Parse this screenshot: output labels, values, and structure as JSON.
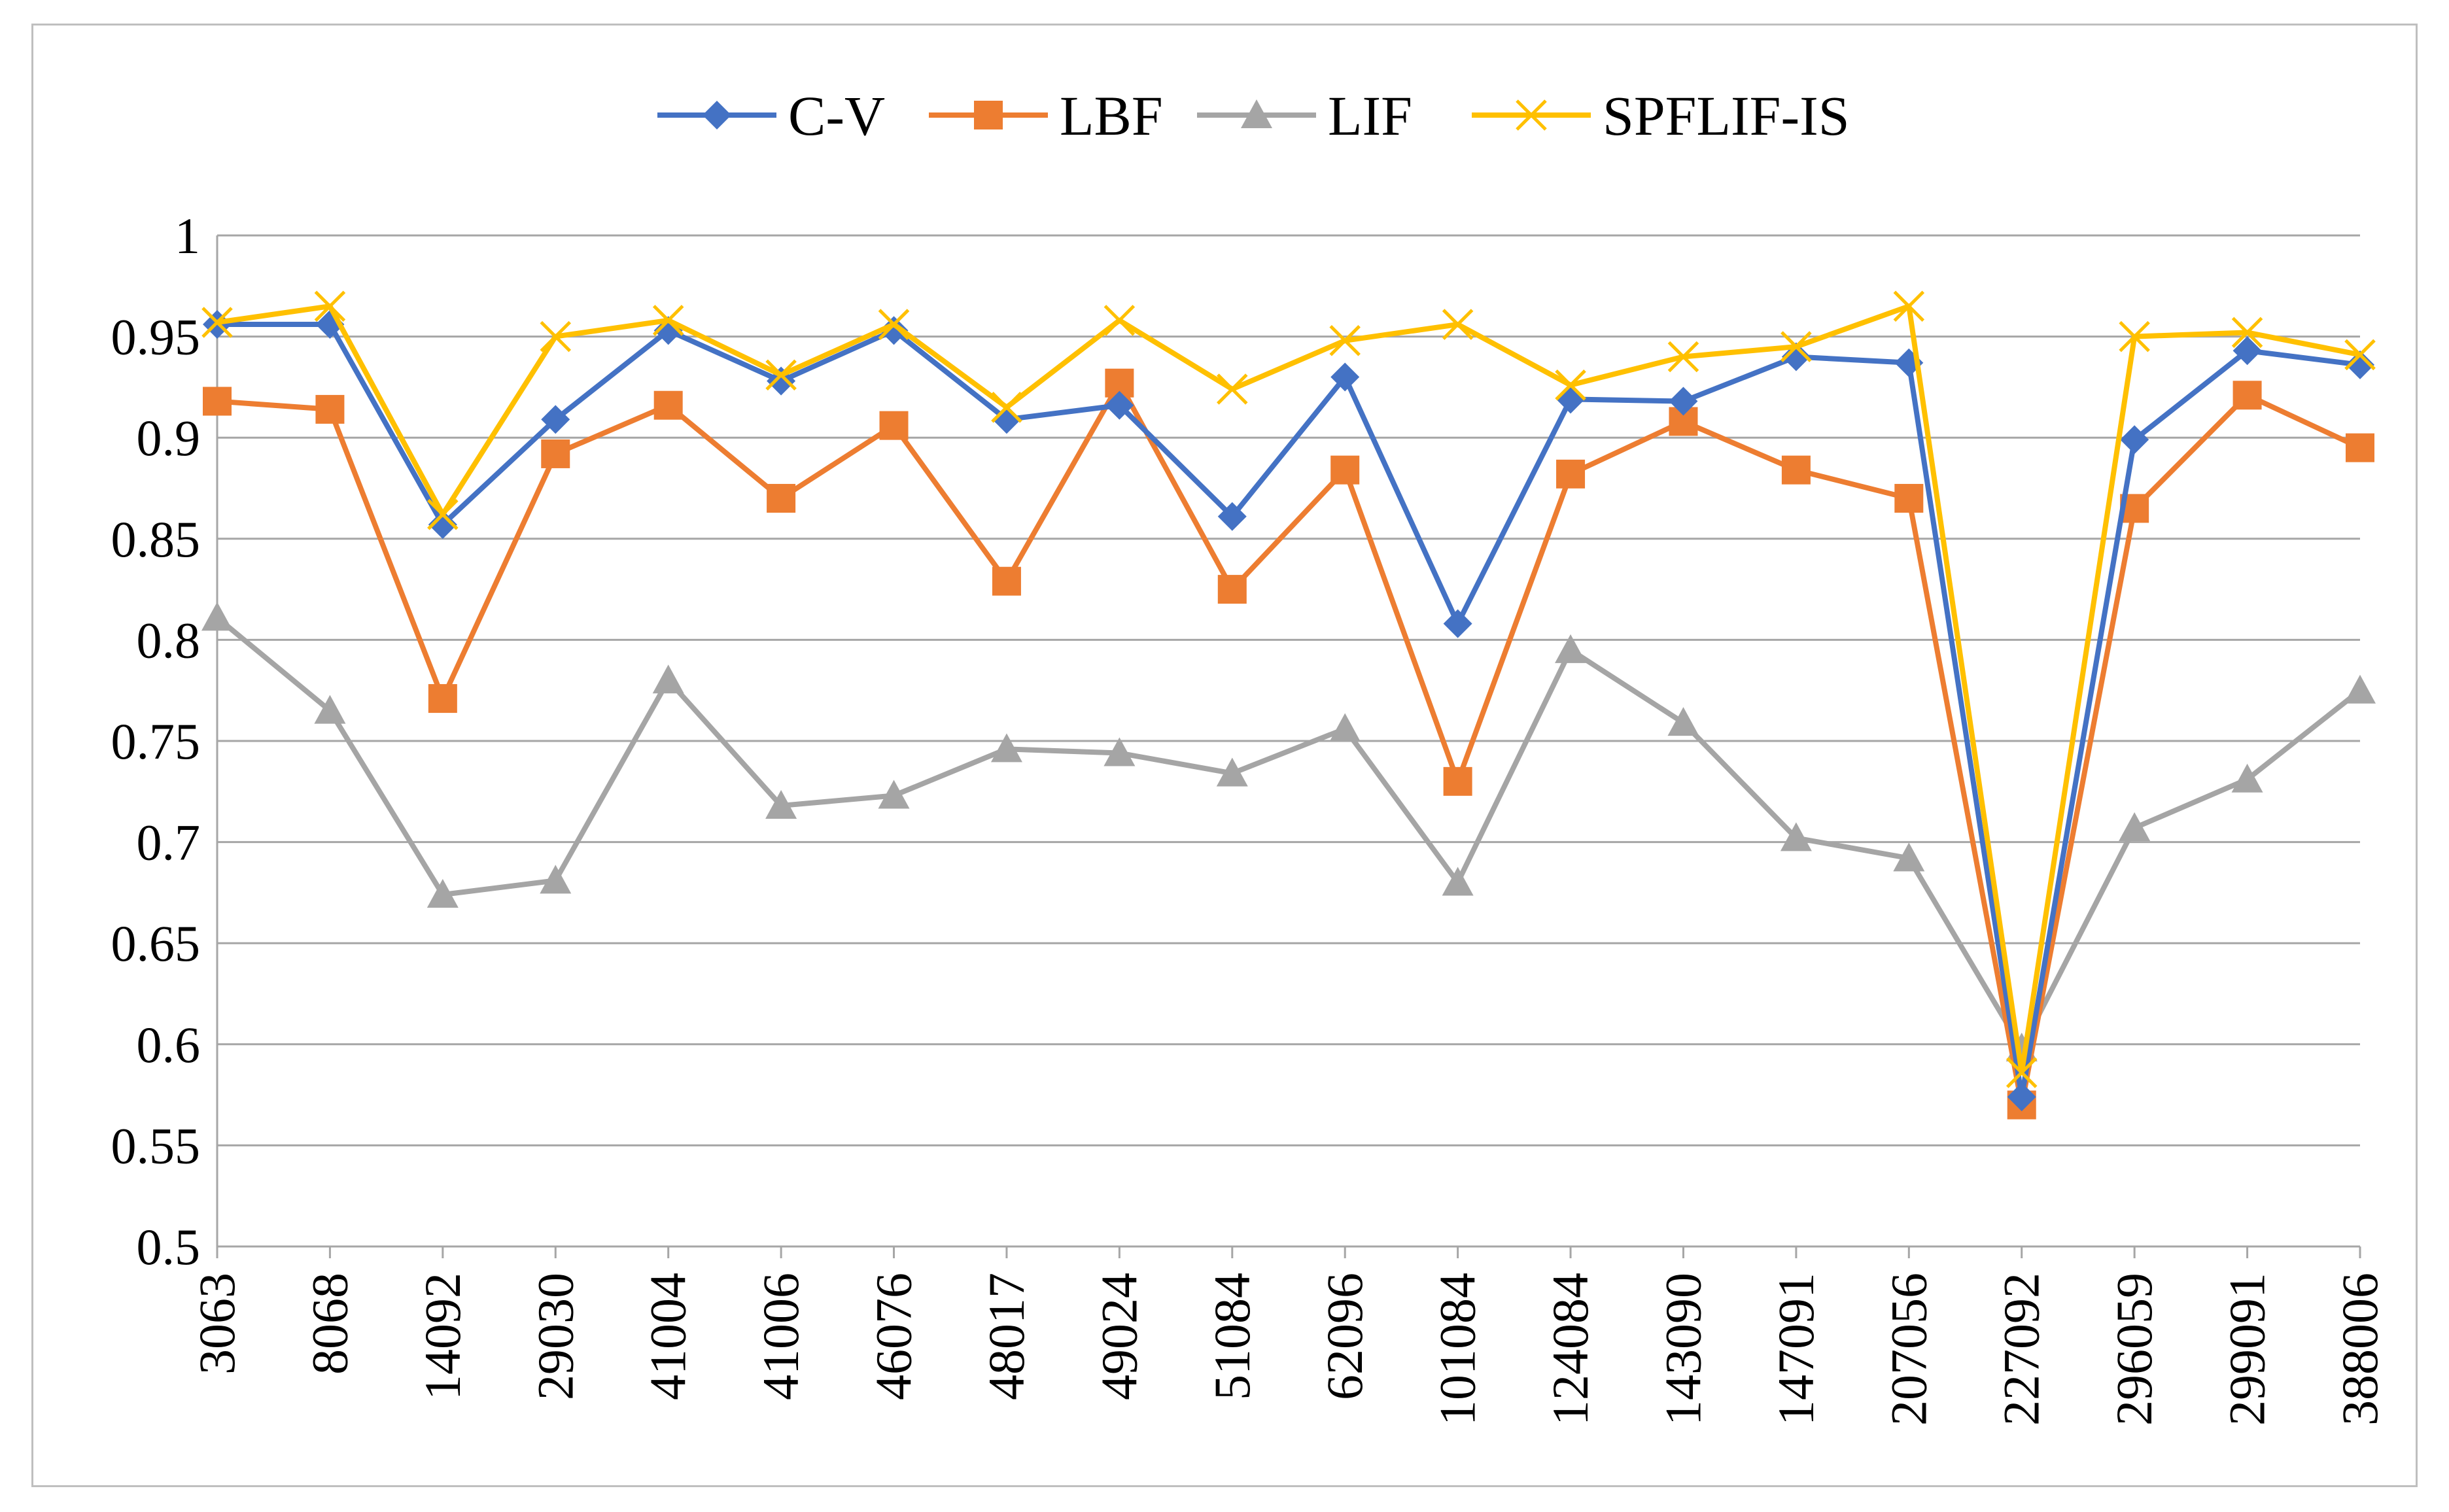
{
  "chart_data": {
    "type": "line",
    "title": "",
    "xlabel": "",
    "ylabel": "",
    "ylim": [
      0.5,
      1
    ],
    "yticks": [
      0.5,
      0.55,
      0.6,
      0.65,
      0.7,
      0.75,
      0.8,
      0.85,
      0.9,
      0.95,
      1
    ],
    "ytick_labels": [
      "0.5",
      "0.55",
      "0.6",
      "0.65",
      "0.7",
      "0.75",
      "0.8",
      "0.85",
      "0.9",
      "0.95",
      "1"
    ],
    "grid": true,
    "legend_position": "top-center",
    "categories": [
      "3063",
      "8068",
      "14092",
      "29030",
      "41004",
      "41006",
      "46076",
      "48017",
      "49024",
      "51084",
      "62096",
      "101084",
      "124084",
      "143090",
      "147091",
      "207056",
      "227092",
      "296059",
      "299091",
      "388006"
    ],
    "series": [
      {
        "name": "C-V",
        "color": "#4472c4",
        "marker": "diamond",
        "values": [
          0.956,
          0.956,
          0.857,
          0.909,
          0.953,
          0.928,
          0.953,
          0.909,
          0.916,
          0.861,
          0.93,
          0.808,
          0.919,
          0.918,
          0.94,
          0.937,
          0.574,
          0.899,
          0.943,
          0.936
        ]
      },
      {
        "name": "LBF",
        "color": "#ed7d31",
        "marker": "square",
        "values": [
          0.918,
          0.914,
          0.771,
          0.892,
          0.916,
          0.87,
          0.906,
          0.829,
          0.927,
          0.825,
          0.884,
          0.73,
          0.882,
          0.908,
          0.884,
          0.87,
          0.57,
          0.865,
          0.921,
          0.895
        ]
      },
      {
        "name": "LIF",
        "color": "#a5a5a5",
        "marker": "triangle",
        "values": [
          0.811,
          0.765,
          0.674,
          0.681,
          0.78,
          0.718,
          0.723,
          0.746,
          0.744,
          0.734,
          0.756,
          0.68,
          0.795,
          0.759,
          0.702,
          0.692,
          0.598,
          0.707,
          0.731,
          0.775
        ]
      },
      {
        "name": "SPFLIF-IS",
        "color": "#ffc000",
        "marker": "x",
        "values": [
          0.957,
          0.965,
          0.862,
          0.95,
          0.958,
          0.931,
          0.956,
          0.915,
          0.958,
          0.924,
          0.948,
          0.956,
          0.926,
          0.94,
          0.945,
          0.965,
          0.586,
          0.95,
          0.952,
          0.941
        ]
      }
    ]
  }
}
